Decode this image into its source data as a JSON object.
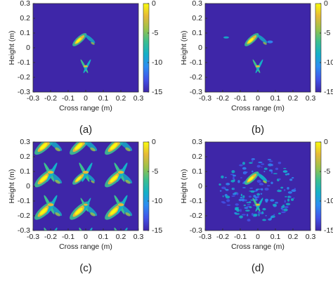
{
  "chart_data": [
    {
      "type": "heatmap",
      "xlabel": "Cross range (m)",
      "ylabel": "Height (m)",
      "xlim": [
        -0.3,
        0.3
      ],
      "ylim": [
        -0.3,
        0.3
      ],
      "xticks": [
        -0.3,
        -0.2,
        -0.1,
        0,
        0.1,
        0.2,
        0.3
      ],
      "yticks": [
        -0.3,
        -0.2,
        -0.1,
        0,
        0.1,
        0.2,
        0.3
      ],
      "clim": [
        -15,
        0
      ],
      "cticks": [
        0,
        -5,
        -10,
        -15
      ],
      "colormap": [
        "#3e26a8",
        "#4253e8",
        "#2d8cf2",
        "#14b0c8",
        "#3cbf8f",
        "#9bc24a",
        "#e5b938",
        "#f9fb0e"
      ],
      "caption": "(a)"
    },
    {
      "type": "heatmap",
      "xlabel": "Cross range (m)",
      "ylabel": "Height (m)",
      "xlim": [
        -0.3,
        0.3
      ],
      "ylim": [
        -0.3,
        0.3
      ],
      "xticks": [
        -0.3,
        -0.2,
        -0.1,
        0,
        0.1,
        0.2,
        0.3
      ],
      "yticks": [
        -0.3,
        -0.2,
        -0.1,
        0,
        0.1,
        0.2,
        0.3
      ],
      "clim": [
        -15,
        0
      ],
      "cticks": [
        0,
        -5,
        -10,
        -15
      ],
      "colormap": [
        "#3e26a8",
        "#4253e8",
        "#2d8cf2",
        "#14b0c8",
        "#3cbf8f",
        "#9bc24a",
        "#e5b938",
        "#f9fb0e"
      ],
      "caption": "(b)"
    },
    {
      "type": "heatmap",
      "xlabel": "Cross range (m)",
      "ylabel": "Height (m)",
      "xlim": [
        -0.3,
        0.3
      ],
      "ylim": [
        -0.3,
        0.3
      ],
      "xticks": [
        -0.3,
        -0.2,
        -0.1,
        0,
        0.1,
        0.2,
        0.3
      ],
      "yticks": [
        -0.3,
        -0.2,
        -0.1,
        0,
        0.1,
        0.2,
        0.3
      ],
      "clim": [
        -15,
        0
      ],
      "cticks": [
        0,
        -5,
        -10,
        -15
      ],
      "colormap": [
        "#3e26a8",
        "#4253e8",
        "#2d8cf2",
        "#14b0c8",
        "#3cbf8f",
        "#9bc24a",
        "#e5b938",
        "#f9fb0e"
      ],
      "caption": "(c)"
    },
    {
      "type": "heatmap",
      "xlabel": "Cross range (m)",
      "ylabel": "Height (m)",
      "xlim": [
        -0.3,
        0.3
      ],
      "ylim": [
        -0.3,
        0.3
      ],
      "xticks": [
        -0.3,
        -0.2,
        -0.1,
        0,
        0.1,
        0.2,
        0.3
      ],
      "yticks": [
        -0.3,
        -0.2,
        -0.1,
        0,
        0.1,
        0.2,
        0.3
      ],
      "clim": [
        -15,
        0
      ],
      "cticks": [
        0,
        -5,
        -10,
        -15
      ],
      "colormap": [
        "#3e26a8",
        "#4253e8",
        "#2d8cf2",
        "#14b0c8",
        "#3cbf8f",
        "#9bc24a",
        "#e5b938",
        "#f9fb0e"
      ],
      "caption": "(d)"
    }
  ]
}
